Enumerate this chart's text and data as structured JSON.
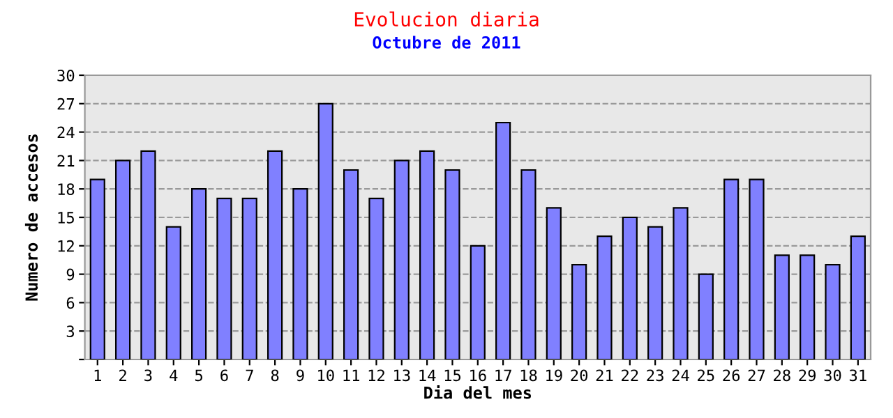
{
  "chart_data": {
    "type": "bar",
    "title": "Evolucion diaria",
    "subtitle": "Octubre de 2011",
    "xlabel": "Dia del mes",
    "ylabel": "Numero de accesos",
    "categories": [
      "1",
      "2",
      "3",
      "4",
      "5",
      "6",
      "7",
      "8",
      "9",
      "10",
      "11",
      "12",
      "13",
      "14",
      "15",
      "16",
      "17",
      "18",
      "19",
      "20",
      "21",
      "22",
      "23",
      "24",
      "25",
      "26",
      "27",
      "28",
      "29",
      "30",
      "31"
    ],
    "values": [
      19,
      21,
      22,
      14,
      18,
      17,
      17,
      22,
      18,
      27,
      20,
      17,
      21,
      22,
      20,
      12,
      25,
      20,
      16,
      10,
      13,
      15,
      14,
      16,
      9,
      19,
      19,
      11,
      11,
      10,
      13
    ],
    "color": "#8080ff",
    "ylim": [
      0,
      30
    ],
    "yticks": [
      {
        "value": 0,
        "label": null
      },
      3,
      6,
      9,
      12,
      15,
      18,
      21,
      24,
      27,
      30
    ],
    "grid": "y",
    "line_style": "dashed"
  }
}
